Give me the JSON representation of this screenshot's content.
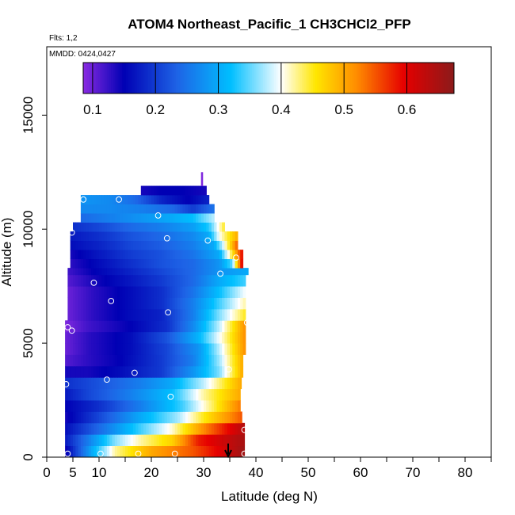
{
  "chart_data": {
    "type": "heatmap",
    "title": "ATOM4 Northeast_Pacific_1 CH3CHCl2_PFP",
    "flights_label": "Flts: 1,2",
    "dates_label": "MMDD: 0424,0427",
    "xlabel": "Latitude (deg N)",
    "ylabel": "Altitude (m)",
    "xlim": [
      0,
      85
    ],
    "ylim": [
      0,
      18000
    ],
    "x_ticks": [
      0,
      5,
      10,
      20,
      30,
      40,
      50,
      60,
      70,
      80
    ],
    "x_minor_ticks": [
      15,
      25,
      35,
      45,
      55,
      65,
      75,
      85
    ],
    "y_ticks": [
      0,
      5000,
      10000,
      15000
    ],
    "colorbar": {
      "min": 0.085,
      "max": 0.675,
      "ticks": [
        0.1,
        0.2,
        0.3,
        0.4,
        0.5,
        0.6
      ],
      "tick_labels": [
        "0.1",
        "0.2",
        "0.3",
        "0.4",
        "0.5",
        "0.6"
      ]
    },
    "curtain_rows": [
      {
        "alt_bottom": 0,
        "alt_top": 500,
        "lat_min": 3.5,
        "lat_max": 37.8,
        "values": [
          [
            3.5,
            0.14
          ],
          [
            8,
            0.28
          ],
          [
            13,
            0.42
          ],
          [
            20,
            0.5
          ],
          [
            28,
            0.55
          ],
          [
            33,
            0.6
          ],
          [
            37.8,
            0.66
          ]
        ]
      },
      {
        "alt_bottom": 500,
        "alt_top": 1000,
        "lat_min": 3.5,
        "lat_max": 37.8,
        "values": [
          [
            3.5,
            0.17
          ],
          [
            8,
            0.26
          ],
          [
            13,
            0.36
          ],
          [
            18,
            0.42
          ],
          [
            24,
            0.47
          ],
          [
            29,
            0.58
          ],
          [
            37.8,
            0.65
          ]
        ]
      },
      {
        "alt_bottom": 1000,
        "alt_top": 1500,
        "lat_min": 3.5,
        "lat_max": 37.8,
        "values": [
          [
            3.5,
            0.16
          ],
          [
            10,
            0.24
          ],
          [
            18,
            0.34
          ],
          [
            24,
            0.41
          ],
          [
            30,
            0.52
          ],
          [
            37.8,
            0.64
          ]
        ]
      },
      {
        "alt_bottom": 1500,
        "alt_top": 2000,
        "lat_min": 3.5,
        "lat_max": 37.3,
        "values": [
          [
            3.5,
            0.14
          ],
          [
            10,
            0.21
          ],
          [
            18,
            0.3
          ],
          [
            25,
            0.37
          ],
          [
            30,
            0.45
          ],
          [
            37.3,
            0.55
          ]
        ]
      },
      {
        "alt_bottom": 2000,
        "alt_top": 2500,
        "lat_min": 3.5,
        "lat_max": 37,
        "values": [
          [
            3.5,
            0.15
          ],
          [
            10,
            0.19
          ],
          [
            18,
            0.26
          ],
          [
            26,
            0.34
          ],
          [
            32,
            0.44
          ],
          [
            37,
            0.53
          ]
        ]
      },
      {
        "alt_bottom": 2500,
        "alt_top": 3000,
        "lat_min": 3.5,
        "lat_max": 37,
        "values": [
          [
            3.5,
            0.17
          ],
          [
            8,
            0.21
          ],
          [
            16,
            0.26
          ],
          [
            24,
            0.32
          ],
          [
            30,
            0.42
          ],
          [
            37,
            0.5
          ]
        ]
      },
      {
        "alt_bottom": 3000,
        "alt_top": 3500,
        "lat_min": 3.5,
        "lat_max": 37.2,
        "values": [
          [
            3.5,
            0.19
          ],
          [
            10,
            0.22
          ],
          [
            18,
            0.26
          ],
          [
            24,
            0.3
          ],
          [
            30,
            0.38
          ],
          [
            37.2,
            0.5
          ]
        ]
      },
      {
        "alt_bottom": 3500,
        "alt_top": 4000,
        "lat_min": 3.5,
        "lat_max": 37.5,
        "values": [
          [
            3.5,
            0.14
          ],
          [
            8,
            0.14
          ],
          [
            14,
            0.16
          ],
          [
            22,
            0.2
          ],
          [
            28,
            0.28
          ],
          [
            33,
            0.36
          ],
          [
            37.5,
            0.5
          ]
        ]
      },
      {
        "alt_bottom": 4000,
        "alt_top": 4500,
        "lat_min": 3.5,
        "lat_max": 37.5,
        "values": [
          [
            3.5,
            0.11
          ],
          [
            8,
            0.13
          ],
          [
            14,
            0.15
          ],
          [
            22,
            0.2
          ],
          [
            28,
            0.26
          ],
          [
            33,
            0.37
          ],
          [
            37.5,
            0.5
          ]
        ]
      },
      {
        "alt_bottom": 4500,
        "alt_top": 5000,
        "lat_min": 3.5,
        "lat_max": 38,
        "values": [
          [
            3.5,
            0.1
          ],
          [
            8,
            0.13
          ],
          [
            16,
            0.16
          ],
          [
            23,
            0.21
          ],
          [
            29,
            0.28
          ],
          [
            33,
            0.38
          ],
          [
            38,
            0.52
          ]
        ]
      },
      {
        "alt_bottom": 5000,
        "alt_top": 5500,
        "lat_min": 3.5,
        "lat_max": 38,
        "values": [
          [
            3.5,
            0.1
          ],
          [
            8,
            0.13
          ],
          [
            16,
            0.16
          ],
          [
            23,
            0.22
          ],
          [
            29,
            0.31
          ],
          [
            34,
            0.42
          ],
          [
            38,
            0.52
          ]
        ]
      },
      {
        "alt_bottom": 5500,
        "alt_top": 6000,
        "lat_min": 3.5,
        "lat_max": 38,
        "values": [
          [
            3.5,
            0.09
          ],
          [
            8,
            0.12
          ],
          [
            16,
            0.15
          ],
          [
            23,
            0.19
          ],
          [
            28,
            0.27
          ],
          [
            33,
            0.38
          ],
          [
            38,
            0.52
          ]
        ]
      },
      {
        "alt_bottom": 6000,
        "alt_top": 6500,
        "lat_min": 4,
        "lat_max": 38,
        "values": [
          [
            4,
            0.1
          ],
          [
            9,
            0.13
          ],
          [
            16,
            0.16
          ],
          [
            22,
            0.18
          ],
          [
            28,
            0.26
          ],
          [
            33,
            0.36
          ],
          [
            38,
            0.45
          ]
        ]
      },
      {
        "alt_bottom": 6500,
        "alt_top": 7000,
        "lat_min": 4,
        "lat_max": 38,
        "values": [
          [
            4,
            0.1
          ],
          [
            9,
            0.13
          ],
          [
            16,
            0.16
          ],
          [
            22,
            0.19
          ],
          [
            28,
            0.26
          ],
          [
            33,
            0.34
          ],
          [
            38,
            0.42
          ]
        ]
      },
      {
        "alt_bottom": 7000,
        "alt_top": 7500,
        "lat_min": 4,
        "lat_max": 38,
        "values": [
          [
            4,
            0.1
          ],
          [
            9,
            0.13
          ],
          [
            16,
            0.16
          ],
          [
            22,
            0.19
          ],
          [
            28,
            0.25
          ],
          [
            33,
            0.32
          ],
          [
            38,
            0.4
          ]
        ]
      },
      {
        "alt_bottom": 7500,
        "alt_top": 8000,
        "lat_min": 4,
        "lat_max": 38,
        "values": [
          [
            4,
            0.11
          ],
          [
            9,
            0.14
          ],
          [
            16,
            0.17
          ],
          [
            22,
            0.2
          ],
          [
            28,
            0.24
          ],
          [
            33,
            0.3
          ],
          [
            38,
            0.34
          ]
        ]
      },
      {
        "alt_bottom": 8000,
        "alt_top": 8300,
        "lat_min": 4,
        "lat_max": 38.5,
        "values": [
          [
            4,
            0.12
          ],
          [
            9,
            0.15
          ],
          [
            16,
            0.18
          ],
          [
            22,
            0.21
          ],
          [
            28,
            0.24
          ],
          [
            33,
            0.28
          ],
          [
            38.5,
            0.3
          ]
        ]
      },
      {
        "alt_bottom": 8300,
        "alt_top": 8700,
        "lat_min": 4.5,
        "lat_max": 37.5,
        "values": [
          [
            4.5,
            0.13
          ],
          [
            10,
            0.16
          ],
          [
            16,
            0.19
          ],
          [
            22,
            0.22
          ],
          [
            28,
            0.24
          ],
          [
            33,
            0.28
          ],
          [
            35.5,
            0.35
          ],
          [
            37.5,
            0.62
          ]
        ]
      },
      {
        "alt_bottom": 8700,
        "alt_top": 9100,
        "lat_min": 4.5,
        "lat_max": 37.5,
        "values": [
          [
            4.5,
            0.14
          ],
          [
            10,
            0.17
          ],
          [
            16,
            0.2
          ],
          [
            22,
            0.22
          ],
          [
            28,
            0.25
          ],
          [
            33,
            0.3
          ],
          [
            35.5,
            0.45
          ],
          [
            37.5,
            0.6
          ]
        ]
      },
      {
        "alt_bottom": 9100,
        "alt_top": 9500,
        "lat_min": 4.5,
        "lat_max": 36.5,
        "values": [
          [
            4.5,
            0.16
          ],
          [
            10,
            0.18
          ],
          [
            16,
            0.21
          ],
          [
            22,
            0.23
          ],
          [
            28,
            0.26
          ],
          [
            32,
            0.3
          ],
          [
            34,
            0.4
          ],
          [
            36.5,
            0.55
          ]
        ]
      },
      {
        "alt_bottom": 9500,
        "alt_top": 9900,
        "lat_min": 4.5,
        "lat_max": 36.5,
        "values": [
          [
            4.5,
            0.17
          ],
          [
            10,
            0.19
          ],
          [
            16,
            0.22
          ],
          [
            22,
            0.24
          ],
          [
            28,
            0.27
          ],
          [
            31,
            0.3
          ],
          [
            33,
            0.4
          ],
          [
            36.5,
            0.5
          ]
        ]
      },
      {
        "alt_bottom": 9900,
        "alt_top": 10300,
        "lat_min": 5,
        "lat_max": 34,
        "values": [
          [
            5,
            0.19
          ],
          [
            10,
            0.21
          ],
          [
            16,
            0.24
          ],
          [
            22,
            0.26
          ],
          [
            28,
            0.29
          ],
          [
            31,
            0.33
          ],
          [
            34,
            0.45
          ]
        ]
      },
      {
        "alt_bottom": 10300,
        "alt_top": 10700,
        "lat_min": 6.5,
        "lat_max": 32,
        "values": [
          [
            6.5,
            0.24
          ],
          [
            12,
            0.26
          ],
          [
            18,
            0.28
          ],
          [
            24,
            0.3
          ],
          [
            28,
            0.32
          ],
          [
            32,
            0.38
          ]
        ]
      },
      {
        "alt_bottom": 10700,
        "alt_top": 11100,
        "lat_min": 6.5,
        "lat_max": 32,
        "values": [
          [
            6.5,
            0.27
          ],
          [
            12,
            0.27
          ],
          [
            18,
            0.26
          ],
          [
            24,
            0.24
          ],
          [
            28,
            0.2
          ],
          [
            32,
            0.25
          ]
        ]
      },
      {
        "alt_bottom": 11100,
        "alt_top": 11500,
        "lat_min": 6.5,
        "lat_max": 31,
        "values": [
          [
            6.5,
            0.28
          ],
          [
            12,
            0.27
          ],
          [
            17,
            0.24
          ],
          [
            22,
            0.18
          ],
          [
            27,
            0.15
          ],
          [
            31,
            0.18
          ]
        ]
      },
      {
        "alt_bottom": 11500,
        "alt_top": 11900,
        "lat_min": 18,
        "lat_max": 30.5,
        "values": [
          [
            18,
            0.14
          ],
          [
            22,
            0.15
          ],
          [
            26,
            0.15
          ],
          [
            30.5,
            0.14
          ]
        ]
      },
      {
        "alt_bottom": 11900,
        "alt_top": 12500,
        "lat_min": 29.5,
        "lat_max": 29.8,
        "values": [
          [
            29.5,
            0.09
          ],
          [
            29.8,
            0.09
          ]
        ]
      }
    ],
    "sample_points": [
      {
        "lat": 4.0,
        "alt": 150
      },
      {
        "lat": 10.3,
        "alt": 150
      },
      {
        "lat": 17.5,
        "alt": 150
      },
      {
        "lat": 24.5,
        "alt": 150
      },
      {
        "lat": 37.8,
        "alt": 150
      },
      {
        "lat": 37.8,
        "alt": 1200
      },
      {
        "lat": 3.7,
        "alt": 3200
      },
      {
        "lat": 11.5,
        "alt": 3400
      },
      {
        "lat": 16.8,
        "alt": 3700
      },
      {
        "lat": 23.7,
        "alt": 2650
      },
      {
        "lat": 34.8,
        "alt": 3850
      },
      {
        "lat": 4.0,
        "alt": 5700
      },
      {
        "lat": 4.8,
        "alt": 5550
      },
      {
        "lat": 38.3,
        "alt": 5900
      },
      {
        "lat": 12.3,
        "alt": 6850
      },
      {
        "lat": 23.2,
        "alt": 6350
      },
      {
        "lat": 9.0,
        "alt": 7650
      },
      {
        "lat": 33.2,
        "alt": 8050
      },
      {
        "lat": 4.8,
        "alt": 9850
      },
      {
        "lat": 23.0,
        "alt": 9600
      },
      {
        "lat": 30.8,
        "alt": 9500
      },
      {
        "lat": 36.2,
        "alt": 8750
      },
      {
        "lat": 21.3,
        "alt": 10600
      },
      {
        "lat": 7.0,
        "alt": 11300
      },
      {
        "lat": 13.8,
        "alt": 11300
      }
    ],
    "arrow_marker": {
      "lat": 34.7,
      "alt_top": 600,
      "alt_bottom": 0,
      "color": "#000000"
    },
    "colors": {
      "stops": [
        "#8a2be2",
        "#0000b4",
        "#1e64e6",
        "#00bfff",
        "#ffffff",
        "#ffe600",
        "#ff8c00",
        "#e60000",
        "#8b1a1a"
      ],
      "stop_values": [
        0.085,
        0.15,
        0.235,
        0.32,
        0.4,
        0.455,
        0.52,
        0.595,
        0.675
      ],
      "frame": "#000000",
      "marker": "#ffffff"
    }
  }
}
